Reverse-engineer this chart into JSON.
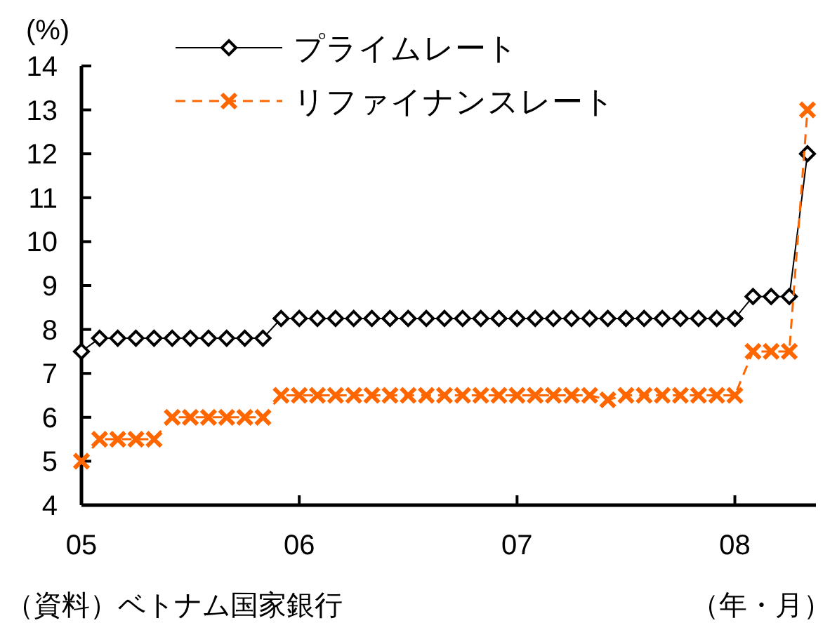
{
  "chart_data": {
    "type": "line",
    "ylabel": "(%)",
    "xlabel": "（年・月）",
    "annotations": [
      "（資料）ベトナム国家銀行"
    ],
    "x": [
      "2005-01",
      "2005-02",
      "2005-03",
      "2005-04",
      "2005-05",
      "2005-06",
      "2005-07",
      "2005-08",
      "2005-09",
      "2005-10",
      "2005-11",
      "2005-12",
      "2006-01",
      "2006-02",
      "2006-03",
      "2006-04",
      "2006-05",
      "2006-06",
      "2006-07",
      "2006-08",
      "2006-09",
      "2006-10",
      "2006-11",
      "2006-12",
      "2007-01",
      "2007-02",
      "2007-03",
      "2007-04",
      "2007-05",
      "2007-06",
      "2007-07",
      "2007-08",
      "2007-09",
      "2007-10",
      "2007-11",
      "2007-12",
      "2008-01",
      "2008-02",
      "2008-03",
      "2008-04",
      "2008-05"
    ],
    "series": [
      {
        "name": "プライムレート",
        "color": "#000000",
        "marker": "diamond",
        "line_style": "solid",
        "values": [
          7.5,
          7.8,
          7.8,
          7.8,
          7.8,
          7.8,
          7.8,
          7.8,
          7.8,
          7.8,
          7.8,
          8.25,
          8.25,
          8.25,
          8.25,
          8.25,
          8.25,
          8.25,
          8.25,
          8.25,
          8.25,
          8.25,
          8.25,
          8.25,
          8.25,
          8.25,
          8.25,
          8.25,
          8.25,
          8.25,
          8.25,
          8.25,
          8.25,
          8.25,
          8.25,
          8.25,
          8.25,
          8.75,
          8.75,
          8.75,
          12
        ]
      },
      {
        "name": "リファイナンスレート",
        "color": "#ff6600",
        "marker": "cross",
        "line_style": "dashed",
        "values": [
          5,
          5.5,
          5.5,
          5.5,
          5.5,
          6,
          6,
          6,
          6,
          6,
          6,
          6.5,
          6.5,
          6.5,
          6.5,
          6.5,
          6.5,
          6.5,
          6.5,
          6.5,
          6.5,
          6.5,
          6.5,
          6.5,
          6.5,
          6.5,
          6.5,
          6.5,
          6.5,
          6.4,
          6.5,
          6.5,
          6.5,
          6.5,
          6.5,
          6.5,
          6.5,
          7.5,
          7.5,
          7.5,
          13
        ]
      }
    ],
    "xlim": [
      "2005-01",
      "2008-05-15"
    ],
    "xticks": [
      {
        "value": "2005-01",
        "label": "05"
      },
      {
        "value": "2006-01",
        "label": "06"
      },
      {
        "value": "2007-01",
        "label": "07"
      },
      {
        "value": "2008-01",
        "label": "08"
      }
    ],
    "ylim": [
      4,
      14
    ],
    "yticks": [
      4,
      5,
      6,
      7,
      8,
      9,
      10,
      11,
      12,
      13,
      14
    ],
    "grid": false,
    "legend": "top left"
  }
}
